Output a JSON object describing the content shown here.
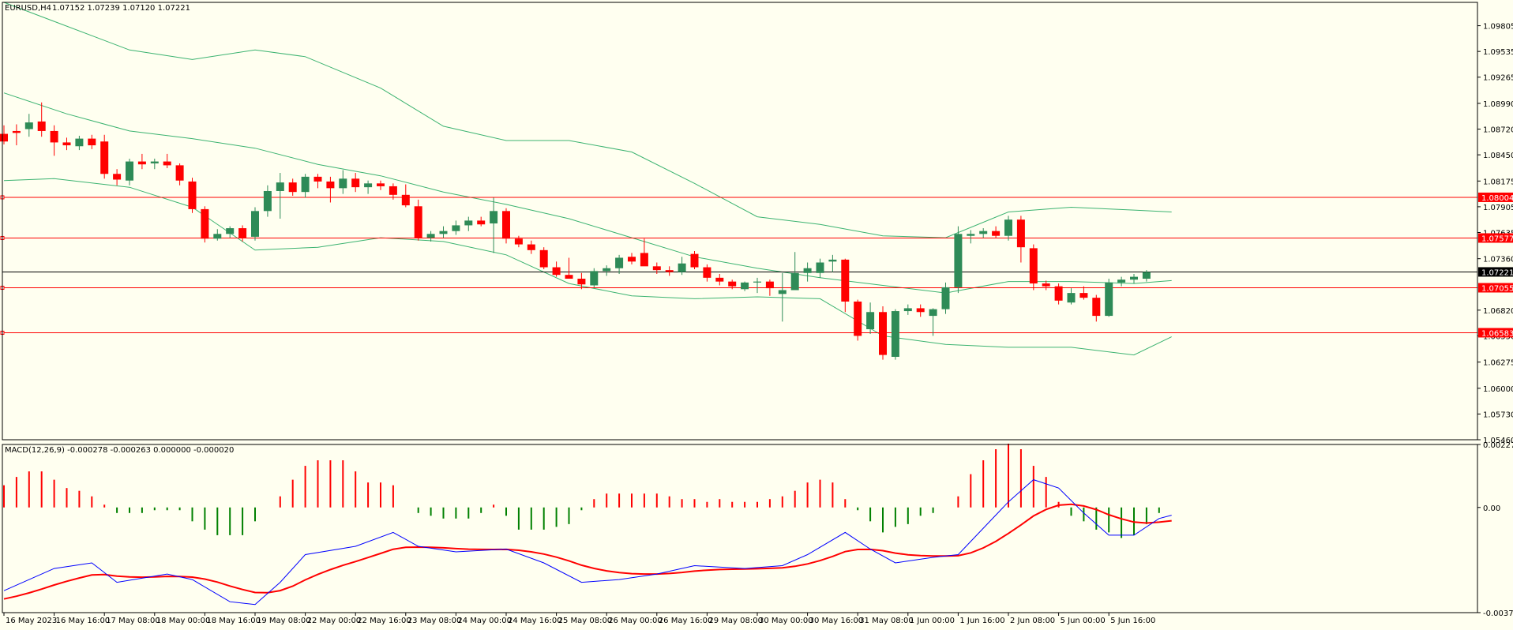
{
  "window": {
    "symbol_label": "EURUSD,H4",
    "ohlc": {
      "open": "1.07152",
      "high": "1.07239",
      "low": "1.07120",
      "close": "1.07221"
    },
    "current_price_label": "1.07221"
  },
  "indicator_label": "MACD(12,26,9) -0.000278 -0.000263 0.000000 -0.000020",
  "colors": {
    "background": "#fffff0",
    "bull_candle": "#2e8b57",
    "bear_candle": "#ff0000",
    "bollinger": "#3cb371",
    "macd_line": "#0000ff",
    "signal_line": "#ff0000",
    "hist_positive": "#ff0000",
    "hist_negative": "#008000",
    "level_line": "#ff0000"
  },
  "chart_data": [
    {
      "type": "candlestick",
      "title": "EURUSD,H4",
      "ylim": [
        1.0546,
        1.1005
      ],
      "y_ticks": [
        "1.09805",
        "1.09535",
        "1.09265",
        "1.08990",
        "1.08720",
        "1.08450",
        "1.08175",
        "1.07905",
        "1.07635",
        "1.07360",
        "1.06820",
        "1.06550",
        "1.06275",
        "1.06000",
        "1.05730",
        "1.05460"
      ],
      "x_ticks": [
        "16 May 2023",
        "16 May 16:00",
        "17 May 08:00",
        "18 May 00:00",
        "18 May 16:00",
        "19 May 08:00",
        "22 May 00:00",
        "22 May 16:00",
        "23 May 08:00",
        "24 May 00:00",
        "24 May 16:00",
        "25 May 08:00",
        "26 May 00:00",
        "26 May 16:00",
        "29 May 08:00",
        "30 May 00:00",
        "30 May 16:00",
        "31 May 08:00",
        "1 Jun 00:00",
        "1 Jun 16:00",
        "2 Jun 08:00",
        "5 Jun 00:00",
        "5 Jun 16:00"
      ],
      "horizontal_levels": [
        1.08004,
        1.07577,
        1.07055,
        1.06583
      ],
      "level_labels": [
        "1.08004",
        "1.07577",
        "1.07055",
        "1.06583"
      ],
      "current_price": 1.07221,
      "candles": [
        [
          1.0867,
          1.0876,
          1.0856,
          1.0859
        ],
        [
          1.087,
          1.0877,
          1.0855,
          1.0868
        ],
        [
          1.0872,
          1.0888,
          1.0864,
          1.0879
        ],
        [
          1.088,
          1.09,
          1.0864,
          1.087
        ],
        [
          1.087,
          1.0876,
          1.0844,
          1.0858
        ],
        [
          1.0858,
          1.0863,
          1.085,
          1.0855
        ],
        [
          1.0854,
          1.0865,
          1.085,
          1.0862
        ],
        [
          1.0862,
          1.0866,
          1.0851,
          1.0855
        ],
        [
          1.0859,
          1.0866,
          1.082,
          1.0825
        ],
        [
          1.0825,
          1.083,
          1.0813,
          1.0819
        ],
        [
          1.0818,
          1.0841,
          1.0813,
          1.0838
        ],
        [
          1.0838,
          1.0846,
          1.083,
          1.0835
        ],
        [
          1.0836,
          1.0841,
          1.083,
          1.0838
        ],
        [
          1.0838,
          1.0846,
          1.0831,
          1.0834
        ],
        [
          1.0834,
          1.0836,
          1.0813,
          1.0818
        ],
        [
          1.0817,
          1.0821,
          1.0784,
          1.0788
        ],
        [
          1.0788,
          1.0791,
          1.0753,
          1.0757
        ],
        [
          1.0757,
          1.0767,
          1.0755,
          1.0762
        ],
        [
          1.0762,
          1.077,
          1.0758,
          1.0768
        ],
        [
          1.0768,
          1.0771,
          1.0754,
          1.0758
        ],
        [
          1.0759,
          1.079,
          1.0755,
          1.0786
        ],
        [
          1.0786,
          1.0813,
          1.078,
          1.0807
        ],
        [
          1.0807,
          1.0826,
          1.0778,
          1.0816
        ],
        [
          1.0816,
          1.082,
          1.0802,
          1.0806
        ],
        [
          1.0806,
          1.0825,
          1.08,
          1.0822
        ],
        [
          1.0822,
          1.0825,
          1.081,
          1.0817
        ],
        [
          1.0817,
          1.0822,
          1.0795,
          1.081
        ],
        [
          1.081,
          1.0829,
          1.0804,
          1.082
        ],
        [
          1.082,
          1.0826,
          1.0806,
          1.0811
        ],
        [
          1.0811,
          1.0818,
          1.0804,
          1.0815
        ],
        [
          1.0815,
          1.0818,
          1.0808,
          1.0812
        ],
        [
          1.0812,
          1.0815,
          1.0798,
          1.0803
        ],
        [
          1.0803,
          1.0814,
          1.079,
          1.0792
        ],
        [
          1.0791,
          1.0798,
          1.0755,
          1.0758
        ],
        [
          1.0758,
          1.0765,
          1.0754,
          1.0762
        ],
        [
          1.0762,
          1.077,
          1.0758,
          1.0765
        ],
        [
          1.0765,
          1.0776,
          1.0761,
          1.0771
        ],
        [
          1.0771,
          1.078,
          1.0765,
          1.0776
        ],
        [
          1.0776,
          1.078,
          1.077,
          1.0772
        ],
        [
          1.0773,
          1.08,
          1.0742,
          1.0786
        ],
        [
          1.0786,
          1.0789,
          1.0752,
          1.0757
        ],
        [
          1.0757,
          1.076,
          1.0748,
          1.0751
        ],
        [
          1.0751,
          1.0755,
          1.0741,
          1.0745
        ],
        [
          1.0745,
          1.0748,
          1.0725,
          1.0727
        ],
        [
          1.0727,
          1.0733,
          1.0717,
          1.0719
        ],
        [
          1.0719,
          1.0737,
          1.0715,
          1.0715
        ],
        [
          1.0715,
          1.0721,
          1.0704,
          1.0709
        ],
        [
          1.0708,
          1.0726,
          1.0706,
          1.0723
        ],
        [
          1.0723,
          1.0729,
          1.0718,
          1.0726
        ],
        [
          1.0726,
          1.074,
          1.072,
          1.0737
        ],
        [
          1.0738,
          1.0742,
          1.073,
          1.0733
        ],
        [
          1.0742,
          1.0757,
          1.073,
          1.0728
        ],
        [
          1.0728,
          1.0732,
          1.072,
          1.0724
        ],
        [
          1.0724,
          1.0728,
          1.0718,
          1.0722
        ],
        [
          1.0722,
          1.0738,
          1.0719,
          1.0731
        ],
        [
          1.0741,
          1.0744,
          1.0725,
          1.0727
        ],
        [
          1.0727,
          1.073,
          1.0712,
          1.0716
        ],
        [
          1.0716,
          1.072,
          1.0708,
          1.0712
        ],
        [
          1.0712,
          1.0714,
          1.0704,
          1.0707
        ],
        [
          1.0704,
          1.0712,
          1.0702,
          1.0711
        ],
        [
          1.0711,
          1.0716,
          1.07,
          1.0712
        ],
        [
          1.0712,
          1.0714,
          1.0697,
          1.0705
        ],
        [
          1.0699,
          1.0721,
          1.067,
          1.0703
        ],
        [
          1.0703,
          1.0743,
          1.0703,
          1.0721
        ],
        [
          1.0721,
          1.0732,
          1.0712,
          1.0726
        ],
        [
          1.0721,
          1.0736,
          1.0716,
          1.0732
        ],
        [
          1.0733,
          1.074,
          1.0722,
          1.0735
        ],
        [
          1.0735,
          1.0736,
          1.068,
          1.0691
        ],
        [
          1.0691,
          1.0693,
          1.065,
          1.0655
        ],
        [
          1.0662,
          1.069,
          1.0657,
          1.068
        ],
        [
          1.068,
          1.0686,
          1.063,
          1.0635
        ],
        [
          1.0633,
          1.0683,
          1.063,
          1.0681
        ],
        [
          1.0681,
          1.0688,
          1.0677,
          1.0684
        ],
        [
          1.0684,
          1.0688,
          1.0675,
          1.068
        ],
        [
          1.0676,
          1.0684,
          1.0655,
          1.0683
        ],
        [
          1.0683,
          1.0711,
          1.0678,
          1.0706
        ],
        [
          1.0706,
          1.077,
          1.07,
          1.0762
        ],
        [
          1.076,
          1.0766,
          1.0752,
          1.0762
        ],
        [
          1.0762,
          1.0768,
          1.0758,
          1.0765
        ],
        [
          1.0765,
          1.077,
          1.0758,
          1.076
        ],
        [
          1.076,
          1.0781,
          1.0755,
          1.0777
        ],
        [
          1.0777,
          1.0781,
          1.0732,
          1.0748
        ],
        [
          1.0747,
          1.0751,
          1.0703,
          1.071
        ],
        [
          1.071,
          1.0713,
          1.0703,
          1.0707
        ],
        [
          1.0707,
          1.071,
          1.0688,
          1.0692
        ],
        [
          1.069,
          1.0705,
          1.0688,
          1.07
        ],
        [
          1.07,
          1.0707,
          1.0693,
          1.0695
        ],
        [
          1.0695,
          1.0698,
          1.067,
          1.0676
        ],
        [
          1.0676,
          1.0715,
          1.0675,
          1.0711
        ],
        [
          1.0711,
          1.0717,
          1.0707,
          1.0714
        ],
        [
          1.0714,
          1.072,
          1.071,
          1.0717
        ],
        [
          1.0715,
          1.0724,
          1.0712,
          1.0722
        ]
      ],
      "bollinger": {
        "upper": [
          [
            0,
            1.1005
          ],
          [
            4,
            1.0985
          ],
          [
            10,
            1.0955
          ],
          [
            15,
            1.0945
          ],
          [
            20,
            1.0955
          ],
          [
            24,
            1.0948
          ],
          [
            30,
            1.0915
          ],
          [
            35,
            1.0875
          ],
          [
            40,
            1.086
          ],
          [
            45,
            1.086
          ],
          [
            50,
            1.0848
          ],
          [
            55,
            1.0815
          ],
          [
            60,
            1.078
          ],
          [
            65,
            1.0772
          ],
          [
            70,
            1.076
          ],
          [
            75,
            1.0758
          ],
          [
            80,
            1.0785
          ],
          [
            85,
            1.079
          ],
          [
            90,
            1.0787
          ],
          [
            93,
            1.0785
          ]
        ],
        "middle": [
          [
            0,
            1.091
          ],
          [
            5,
            1.0888
          ],
          [
            10,
            1.087
          ],
          [
            15,
            1.0862
          ],
          [
            20,
            1.0852
          ],
          [
            25,
            1.0835
          ],
          [
            30,
            1.0823
          ],
          [
            35,
            1.0806
          ],
          [
            40,
            1.0793
          ],
          [
            45,
            1.0778
          ],
          [
            50,
            1.0758
          ],
          [
            55,
            1.0738
          ],
          [
            60,
            1.0726
          ],
          [
            65,
            1.0716
          ],
          [
            70,
            1.0708
          ],
          [
            75,
            1.07
          ],
          [
            80,
            1.0712
          ],
          [
            85,
            1.0712
          ],
          [
            90,
            1.071
          ],
          [
            93,
            1.0713
          ]
        ],
        "lower": [
          [
            0,
            1.0818
          ],
          [
            4,
            1.082
          ],
          [
            10,
            1.0811
          ],
          [
            15,
            1.079
          ],
          [
            20,
            1.0745
          ],
          [
            25,
            1.0748
          ],
          [
            30,
            1.0758
          ],
          [
            35,
            1.0754
          ],
          [
            40,
            1.074
          ],
          [
            45,
            1.071
          ],
          [
            50,
            1.0697
          ],
          [
            55,
            1.0694
          ],
          [
            60,
            1.0696
          ],
          [
            65,
            1.0694
          ],
          [
            70,
            1.0655
          ],
          [
            75,
            1.0646
          ],
          [
            80,
            1.0643
          ],
          [
            85,
            1.0643
          ],
          [
            90,
            1.0635
          ],
          [
            93,
            1.0654
          ]
        ]
      }
    },
    {
      "type": "bar",
      "title": "MACD(12,26,9)",
      "ylim": [
        -0.003792,
        0.00227
      ],
      "y_ticks": [
        "0.00227",
        "0.00",
        "-0.003792"
      ],
      "histogram": [
        0.0008,
        0.0011,
        0.0013,
        0.0013,
        0.001,
        0.0007,
        0.0006,
        0.0004,
        0.0001,
        -0.0002,
        -0.0002,
        -0.0002,
        -0.0001,
        -0.0001,
        -0.0001,
        -0.0005,
        -0.0008,
        -0.001,
        -0.001,
        -0.001,
        -0.0005,
        0.0,
        0.0004,
        0.001,
        0.0015,
        0.0017,
        0.0017,
        0.0017,
        0.0013,
        0.0009,
        0.0009,
        0.0008,
        0.0,
        -0.0002,
        -0.0003,
        -0.0004,
        -0.0004,
        -0.0004,
        -0.0002,
        0.0001,
        -0.0003,
        -0.0008,
        -0.0008,
        -0.0008,
        -0.0007,
        -0.0006,
        -0.0001,
        0.0003,
        0.0005,
        0.0005,
        0.0005,
        0.0005,
        0.0005,
        0.0004,
        0.0003,
        0.0003,
        0.0002,
        0.0003,
        0.0002,
        0.0002,
        0.0002,
        0.0003,
        0.0004,
        0.0006,
        0.0009,
        0.001,
        0.0009,
        0.0003,
        -0.0001,
        -0.0005,
        -0.0009,
        -0.0007,
        -0.0006,
        -0.0003,
        -0.0002,
        0.0,
        0.0004,
        0.0012,
        0.0017,
        0.0021,
        0.0023,
        0.0021,
        0.0015,
        0.0011,
        0.0002,
        -0.0003,
        -0.0005,
        -0.0008,
        -0.0009,
        -0.0011,
        -0.001,
        -0.0006,
        -0.0002,
        -0.0
      ],
      "macd_line": [
        [
          0,
          -0.003
        ],
        [
          4,
          -0.0022
        ],
        [
          7,
          -0.002
        ],
        [
          9,
          -0.0027
        ],
        [
          13,
          -0.0024
        ],
        [
          15,
          -0.0026
        ],
        [
          18,
          -0.0034
        ],
        [
          20,
          -0.0035
        ],
        [
          22,
          -0.0027
        ],
        [
          24,
          -0.0017
        ],
        [
          28,
          -0.0014
        ],
        [
          31,
          -0.0009
        ],
        [
          33,
          -0.0014
        ],
        [
          36,
          -0.0016
        ],
        [
          40,
          -0.0015
        ],
        [
          43,
          -0.002
        ],
        [
          46,
          -0.0027
        ],
        [
          49,
          -0.0026
        ],
        [
          52,
          -0.0024
        ],
        [
          55,
          -0.0021
        ],
        [
          59,
          -0.0022
        ],
        [
          62,
          -0.0021
        ],
        [
          64,
          -0.0017
        ],
        [
          67,
          -0.0009
        ],
        [
          69,
          -0.0015
        ],
        [
          71,
          -0.002
        ],
        [
          74,
          -0.0018
        ],
        [
          76,
          -0.0017
        ],
        [
          80,
          0.0002
        ],
        [
          82,
          0.001
        ],
        [
          84,
          0.0007
        ],
        [
          86,
          -0.0002
        ],
        [
          88,
          -0.001
        ],
        [
          90,
          -0.001
        ],
        [
          92,
          -0.0004
        ],
        [
          93,
          -0.00028
        ]
      ]
    }
  ]
}
